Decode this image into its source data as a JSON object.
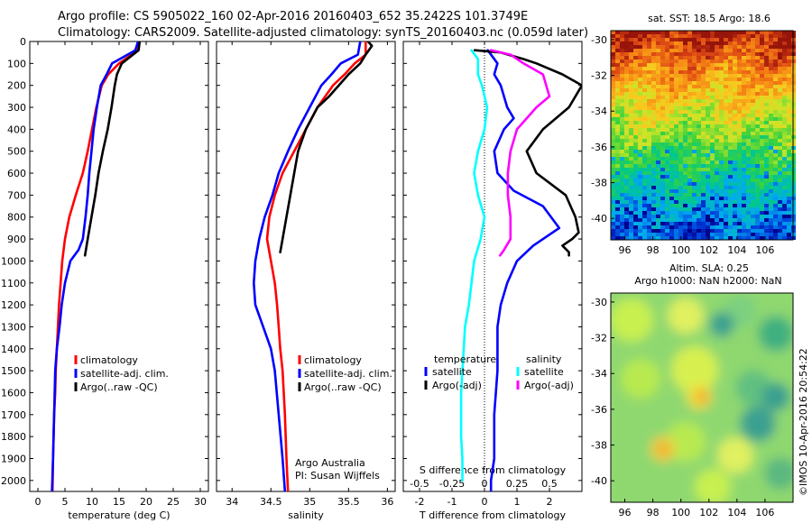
{
  "header": {
    "line1": "Argo profile: CS 5905022_160 02-Apr-2016 20160403_652 35.2422S 101.3749E",
    "line2": "Climatology: CARS2009. Satellite-adjusted climatology: synTS_20160403.nc (0.059d later)"
  },
  "credit": "©IMOS 10-Apr-2016 20:54:22",
  "colors": {
    "climatology": "#ff0000",
    "satellite": "#0000ff",
    "argo": "#000000",
    "sal_satellite": "#00ffff",
    "sal_argo": "#ff00ff"
  },
  "chart_data": [
    {
      "type": "line",
      "xlabel": "temperature (deg C)",
      "ylabel": "",
      "xlim": [
        -1.5,
        31.5
      ],
      "ylim": [
        2050,
        0
      ],
      "xticks": [
        0,
        5,
        10,
        15,
        20,
        25,
        30
      ],
      "yticks": [
        0,
        100,
        200,
        300,
        400,
        500,
        600,
        700,
        800,
        900,
        1000,
        1100,
        1200,
        1300,
        1400,
        1500,
        1600,
        1700,
        1800,
        1900,
        2000
      ],
      "legend": [
        "climatology",
        "satellite-adj. clim.",
        "Argo(..raw -QC)"
      ],
      "legend_position": "bottom-center",
      "series": [
        {
          "name": "climatology",
          "color": "#ff0000",
          "x": [
            18.8,
            18.5,
            15.0,
            13.0,
            11.8,
            10.8,
            10.0,
            9.2,
            8.3,
            7.0,
            5.8,
            5.0,
            4.5,
            4.2,
            3.9,
            3.7,
            3.5,
            3.3,
            3.2,
            3.0,
            2.8,
            2.7
          ],
          "y": [
            0,
            40,
            100,
            150,
            200,
            300,
            400,
            500,
            600,
            700,
            800,
            900,
            1000,
            1100,
            1200,
            1300,
            1400,
            1500,
            1600,
            1700,
            1900,
            2050
          ]
        },
        {
          "name": "satellite-adj. clim.",
          "color": "#0000ff",
          "x": [
            18.5,
            18.0,
            13.7,
            12.7,
            11.6,
            10.9,
            10.3,
            9.9,
            9.5,
            9.2,
            8.8,
            8.3,
            7.5,
            6.0,
            5.0,
            4.4,
            4.0,
            3.5,
            3.2,
            3.0,
            2.8,
            2.6
          ],
          "y": [
            0,
            40,
            100,
            150,
            200,
            300,
            400,
            500,
            600,
            700,
            800,
            900,
            950,
            1000,
            1100,
            1200,
            1300,
            1400,
            1500,
            1700,
            1900,
            2050
          ]
        },
        {
          "name": "Argo(..raw -QC)",
          "color": "#000000",
          "x": [
            18.8,
            18.6,
            15.5,
            14.6,
            14.2,
            13.6,
            12.9,
            12.0,
            11.2,
            10.6,
            9.9,
            9.2,
            8.7
          ],
          "y": [
            0,
            40,
            100,
            150,
            200,
            300,
            400,
            500,
            600,
            700,
            800,
            900,
            975
          ]
        }
      ]
    },
    {
      "type": "line",
      "xlabel": "salinity",
      "ylabel": "",
      "xlim": [
        33.8,
        36.1
      ],
      "ylim": [
        2050,
        0
      ],
      "xticks": [
        34,
        34.5,
        35,
        35.5,
        36
      ],
      "legend": [
        "climatology",
        "satellite-adj. clim.",
        "Argo(..raw -QC)"
      ],
      "legend_position": "bottom-center",
      "annotation": [
        "Argo Australia",
        "PI: Susan Wijffels"
      ],
      "series": [
        {
          "name": "climatology",
          "color": "#ff0000",
          "x": [
            35.72,
            35.72,
            35.58,
            35.45,
            35.3,
            35.1,
            34.95,
            34.8,
            34.65,
            34.55,
            34.48,
            34.45,
            34.5,
            34.55,
            34.58,
            34.6,
            34.62,
            34.65,
            34.68,
            34.7,
            34.72
          ],
          "y": [
            0,
            60,
            100,
            150,
            200,
            300,
            400,
            500,
            600,
            700,
            800,
            900,
            1000,
            1100,
            1200,
            1300,
            1400,
            1500,
            1700,
            1900,
            2050
          ]
        },
        {
          "name": "satellite-adj. clim.",
          "color": "#0000ff",
          "x": [
            35.65,
            35.62,
            35.4,
            35.28,
            35.15,
            35.0,
            34.85,
            34.72,
            34.6,
            34.52,
            34.42,
            34.35,
            34.3,
            34.28,
            34.3,
            34.4,
            34.5,
            34.55,
            34.6,
            34.65,
            34.68
          ],
          "y": [
            0,
            60,
            100,
            150,
            200,
            300,
            400,
            500,
            600,
            700,
            800,
            900,
            1000,
            1100,
            1200,
            1300,
            1400,
            1500,
            1700,
            1900,
            2050
          ]
        },
        {
          "name": "Argo(..raw -QC)",
          "color": "#000000",
          "x": [
            35.75,
            35.8,
            35.72,
            35.65,
            35.5,
            35.25,
            35.1,
            34.95,
            34.85,
            34.8,
            34.75,
            34.7,
            34.65,
            34.62
          ],
          "y": [
            0,
            20,
            60,
            100,
            150,
            250,
            300,
            400,
            500,
            600,
            700,
            800,
            900,
            960
          ]
        }
      ]
    },
    {
      "type": "line",
      "title": "S difference from climatology",
      "xlabel": "T difference from climatology",
      "ylabel": "",
      "xlim": [
        -2.5,
        3.0
      ],
      "ylim": [
        2050,
        0
      ],
      "xticks": [
        -2,
        -1,
        0,
        1,
        2
      ],
      "top_ticks": [
        -0.5,
        -0.25,
        0,
        0.25,
        0.5
      ],
      "top_ticks_units": "S difference",
      "zero_line": "dotted",
      "legend_title_temperature": "temperature",
      "legend_title_salinity": "salinity",
      "legend": [
        {
          "group": "temperature",
          "label": "satellite",
          "color": "#0000ff"
        },
        {
          "group": "temperature",
          "label": "Argo(-adj)",
          "color": "#000000"
        },
        {
          "group": "salinity",
          "label": "satellite",
          "color": "#00ffff"
        },
        {
          "group": "salinity",
          "label": "Argo(-adj)",
          "color": "#ff00ff"
        }
      ],
      "legend_position": "bottom-center",
      "series": [
        {
          "name": "temperature satellite",
          "color": "#0000ff",
          "x": [
            0.1,
            0.4,
            0.3,
            0.5,
            0.7,
            0.9,
            0.6,
            0.3,
            0.4,
            0.9,
            1.8,
            2.3,
            1.5,
            1.0,
            0.7,
            0.5,
            0.4,
            0.4,
            0.3,
            0.3,
            0.2,
            0.2
          ],
          "y": [
            40,
            100,
            150,
            200,
            300,
            350,
            400,
            500,
            600,
            680,
            750,
            850,
            930,
            1000,
            1100,
            1200,
            1300,
            1500,
            1700,
            1900,
            2000,
            2050
          ]
        },
        {
          "name": "temperature Argo(-adj)",
          "color": "#000000",
          "x": [
            -0.3,
            0.5,
            1.2,
            1.6,
            2.4,
            3.0,
            2.6,
            1.8,
            1.3,
            1.6,
            2.5,
            2.8,
            2.9,
            2.7,
            2.4,
            2.6,
            2.6
          ],
          "y": [
            40,
            50,
            80,
            100,
            150,
            200,
            300,
            400,
            500,
            600,
            700,
            800,
            870,
            900,
            930,
            960,
            975
          ]
        },
        {
          "name": "salinity satellite",
          "color": "#00ffff",
          "x": [
            -0.1,
            -0.05,
            -0.05,
            -0.02,
            0.02,
            0.0,
            -0.05,
            -0.08,
            -0.05,
            0.0,
            -0.03,
            -0.08,
            -0.1,
            -0.12,
            -0.15,
            -0.16,
            -0.17,
            -0.18,
            -0.18,
            -0.18,
            -0.17,
            -0.17
          ],
          "y": [
            40,
            80,
            150,
            200,
            300,
            400,
            500,
            600,
            700,
            800,
            900,
            1000,
            1100,
            1200,
            1300,
            1400,
            1500,
            1600,
            1700,
            1800,
            1900,
            2000
          ]
        },
        {
          "name": "salinity Argo(-adj)",
          "color": "#ff00ff",
          "x": [
            0.05,
            0.2,
            0.3,
            0.45,
            0.5,
            0.4,
            0.25,
            0.2,
            0.18,
            0.18,
            0.2,
            0.2,
            0.2,
            0.15,
            0.12
          ],
          "y": [
            40,
            60,
            100,
            150,
            250,
            300,
            400,
            500,
            600,
            700,
            800,
            850,
            900,
            950,
            975
          ]
        }
      ]
    }
  ],
  "maps": [
    {
      "title": "sat. SST: 18.5 Argo: 18.6",
      "type": "heatmap",
      "xlim": [
        95,
        108
      ],
      "ylim": [
        -41.2,
        -29.5
      ],
      "xticks": [
        96,
        98,
        100,
        102,
        104,
        106
      ],
      "yticks": [
        -30,
        -32,
        -34,
        -36,
        -38,
        -40
      ]
    },
    {
      "title_line1": "Altim. SLA: 0.25",
      "title_line2": "Argo h1000: NaN h2000: NaN",
      "type": "heatmap",
      "xlim": [
        95,
        108
      ],
      "ylim": [
        -41.2,
        -29.5
      ],
      "xticks": [
        96,
        98,
        100,
        102,
        104,
        106
      ],
      "yticks": [
        -30,
        -32,
        -34,
        -36,
        -38,
        -40
      ]
    }
  ]
}
